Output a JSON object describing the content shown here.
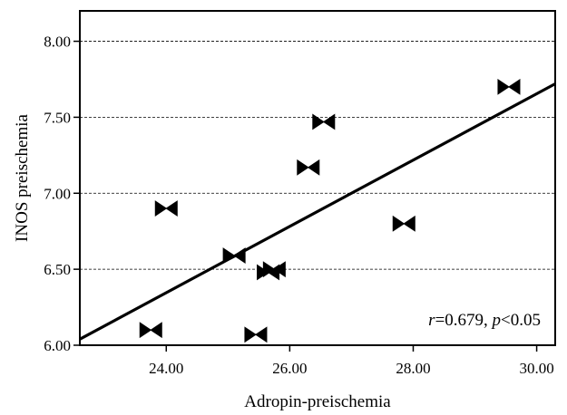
{
  "chart_data": {
    "type": "scatter",
    "title": "",
    "xlabel": "Adropin-preischemia",
    "ylabel": "INOS preischemia",
    "xlim": [
      22.6,
      30.3
    ],
    "ylim": [
      6.0,
      8.2
    ],
    "x_ticks": [
      24.0,
      26.0,
      28.0,
      30.0
    ],
    "x_tick_labels": [
      "24.00",
      "26.00",
      "28.00",
      "30.00"
    ],
    "y_ticks": [
      6.0,
      6.5,
      7.0,
      7.5,
      8.0
    ],
    "y_tick_labels": [
      "6.00",
      "6.50",
      "7.00",
      "7.50",
      "8.00"
    ],
    "grid": "horizontal dashed",
    "marker": "bowtie",
    "points": [
      {
        "x": 23.75,
        "y": 6.1
      },
      {
        "x": 24.0,
        "y": 6.9
      },
      {
        "x": 25.1,
        "y": 6.59
      },
      {
        "x": 25.45,
        "y": 6.07
      },
      {
        "x": 25.65,
        "y": 6.48
      },
      {
        "x": 25.75,
        "y": 6.5
      },
      {
        "x": 26.3,
        "y": 7.17
      },
      {
        "x": 26.55,
        "y": 7.47
      },
      {
        "x": 27.85,
        "y": 6.8
      },
      {
        "x": 29.55,
        "y": 7.7
      }
    ],
    "fit_line": {
      "x": [
        22.6,
        30.3
      ],
      "y": [
        6.04,
        7.72
      ]
    },
    "annotation": {
      "r_symbol": "r",
      "r_value": "=0.679, ",
      "p_symbol": "p",
      "p_value": "<0.05"
    }
  }
}
